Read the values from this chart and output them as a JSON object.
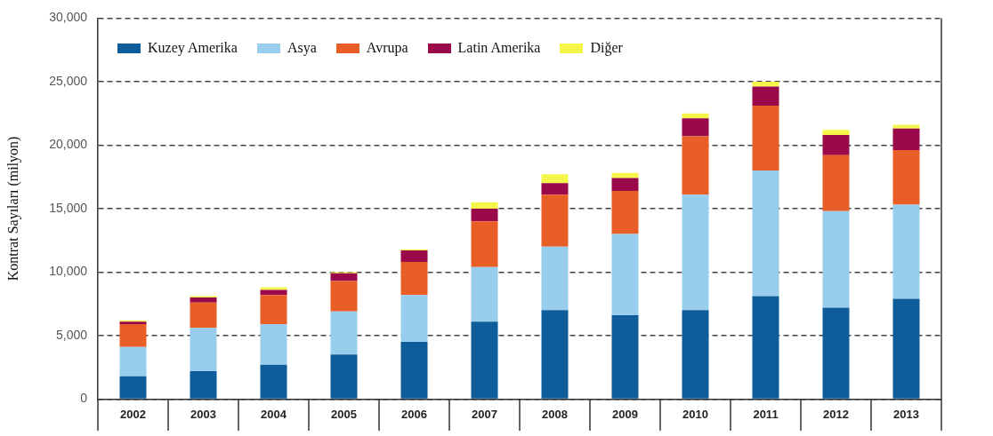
{
  "chart_data": {
    "type": "bar",
    "stacked": true,
    "ylabel": "Kontrat Sayıları (milyon)",
    "categories": [
      "2002",
      "2003",
      "2004",
      "2005",
      "2006",
      "2007",
      "2008",
      "2009",
      "2010",
      "2011",
      "2012",
      "2013"
    ],
    "series": [
      {
        "name": "Kuzey Amerika",
        "color": "#0f5c9a",
        "values": [
          1800,
          2200,
          2700,
          3500,
          4500,
          6100,
          7000,
          6600,
          7000,
          8100,
          7200,
          7900
        ]
      },
      {
        "name": "Asya",
        "color": "#99cdee",
        "values": [
          2300,
          3400,
          3200,
          3400,
          3700,
          4300,
          5000,
          6400,
          9100,
          9900,
          7600,
          7400
        ]
      },
      {
        "name": "Avrupa",
        "color": "#e95e26",
        "values": [
          1800,
          2000,
          2300,
          2400,
          2600,
          3600,
          4100,
          3400,
          4600,
          5100,
          4400,
          4300
        ]
      },
      {
        "name": "Latin Amerika",
        "color": "#9a0a4a",
        "values": [
          200,
          400,
          400,
          600,
          900,
          1000,
          900,
          1000,
          1400,
          1500,
          1600,
          1700
        ]
      },
      {
        "name": "Diğer",
        "color": "#f6f54a",
        "values": [
          100,
          100,
          200,
          100,
          100,
          500,
          700,
          400,
          400,
          400,
          400,
          300
        ]
      }
    ],
    "ylim": [
      0,
      30000
    ],
    "yticks": [
      {
        "value": 0,
        "label": "0"
      },
      {
        "value": 5000,
        "label": "5,000"
      },
      {
        "value": 10000,
        "label": "10,000"
      },
      {
        "value": 15000,
        "label": "15,000"
      },
      {
        "value": 20000,
        "label": "20,000"
      },
      {
        "value": 25000,
        "label": "25,000"
      },
      {
        "value": 30000,
        "label": "30,000"
      }
    ],
    "grid": "y",
    "legend": "top left"
  }
}
